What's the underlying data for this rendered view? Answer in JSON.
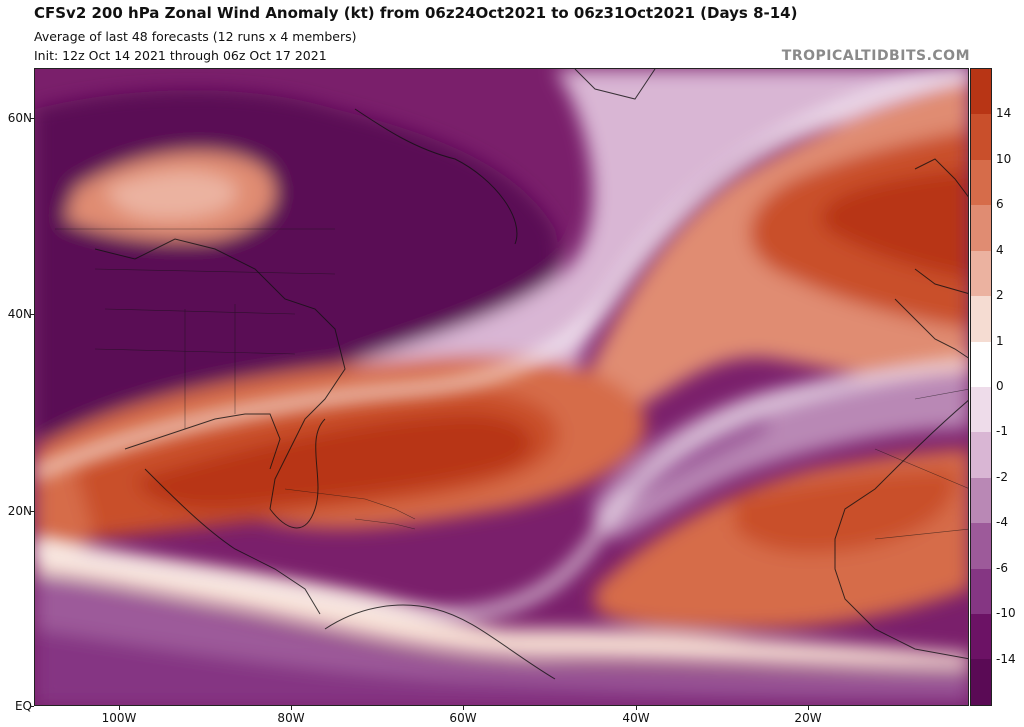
{
  "header": {
    "title": "CFSv2 200 hPa Zonal Wind Anomaly (kt) from 06z24Oct2021 to 06z31Oct2021 (Days 8-14)",
    "subtitle": "Average of last 48 forecasts (12 runs x 4 members)",
    "init": "Init: 12z Oct 14 2021 through 06z Oct 17 2021",
    "brand": "TROPICALTIDBITS.COM"
  },
  "axes": {
    "lat_labels": [
      "60N",
      "40N",
      "20N",
      "EQ"
    ],
    "lon_labels": [
      "100W",
      "80W",
      "60W",
      "40W",
      "20W"
    ]
  },
  "colorbar": {
    "labels": [
      "14",
      "10",
      "6",
      "4",
      "2",
      "1",
      "0",
      "-1",
      "-2",
      "-4",
      "-6",
      "-10",
      "-14"
    ],
    "colors": [
      "#b83515",
      "#c94f2b",
      "#d66c4a",
      "#e08c72",
      "#ebb2a0",
      "#f5dcd2",
      "#ffffff",
      "#eedcea",
      "#d9b6d4",
      "#b988b5",
      "#9d5a9a",
      "#853683",
      "#6c1265",
      "#5a0a55"
    ]
  }
}
